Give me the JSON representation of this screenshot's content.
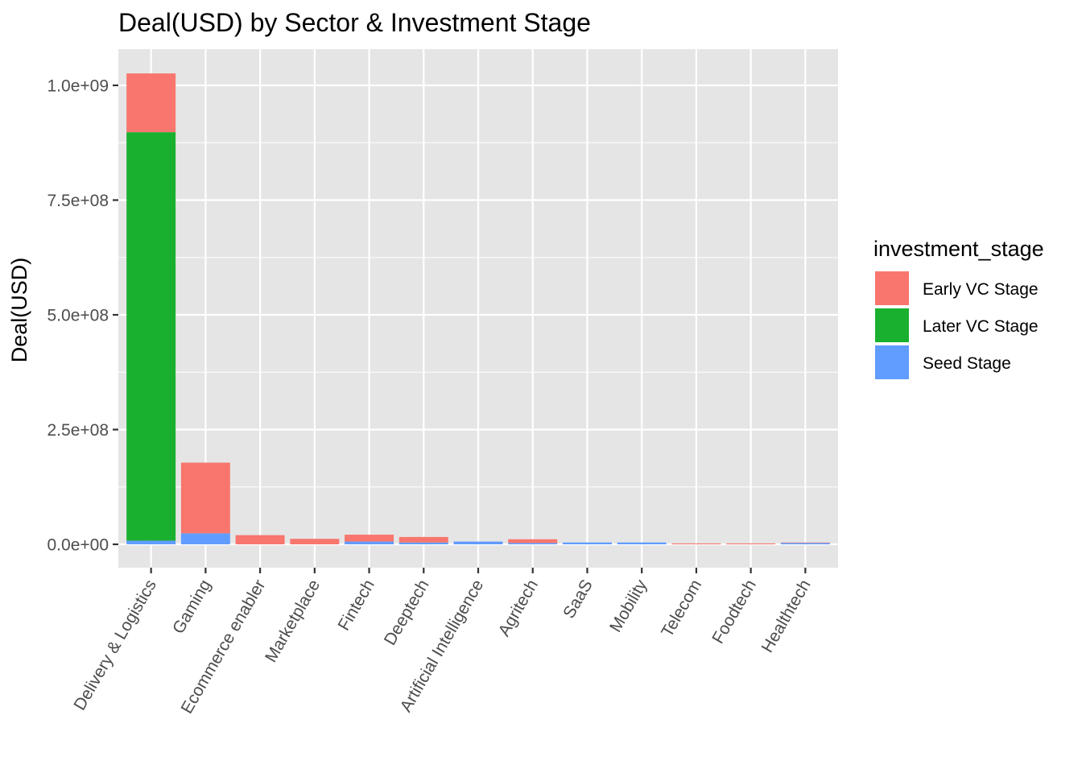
{
  "chart_data": {
    "type": "bar",
    "stacked": true,
    "title": "Deal(USD) by Sector & Investment Stage",
    "xlabel": "",
    "ylabel": "Deal(USD)",
    "ylim": [
      -50000000,
      1100000000
    ],
    "yticks": [
      0,
      250000000,
      500000000,
      750000000,
      1000000000
    ],
    "ytick_labels": [
      "0.0e+00",
      "2.5e+08",
      "5.0e+08",
      "7.5e+08",
      "1.0e+09"
    ],
    "grid": true,
    "legend_position": "right",
    "legend_title": "investment_stage",
    "categories": [
      "Delivery & Logistics",
      "Gaming",
      "Ecommerce enabler",
      "Marketplace",
      "Fintech",
      "Deeptech",
      "Artificial Intelligence",
      "Agritech",
      "SaaS",
      "Mobility",
      "Telecom",
      "Foodtech",
      "Healthtech"
    ],
    "series": [
      {
        "name": "Seed Stage",
        "color": "#619CFF",
        "values": [
          8000000,
          24000000,
          0,
          0,
          6000000,
          4000000,
          6000000,
          3000000,
          4000000,
          4000000,
          0,
          0,
          3000000
        ]
      },
      {
        "name": "Later VC Stage",
        "color": "#1AB02F",
        "values": [
          890000000,
          0,
          0,
          0,
          0,
          0,
          0,
          0,
          0,
          0,
          0,
          0,
          0
        ]
      },
      {
        "name": "Early VC Stage",
        "color": "#F8766D",
        "values": [
          128000000,
          154000000,
          20000000,
          12000000,
          15000000,
          12000000,
          0,
          8000000,
          0,
          0,
          2000000,
          2000000,
          1000000
        ]
      }
    ],
    "legend_order": [
      "Early VC Stage",
      "Later VC Stage",
      "Seed Stage"
    ],
    "panel_background": "#E5E5E5",
    "grid_color": "#FFFFFF"
  }
}
